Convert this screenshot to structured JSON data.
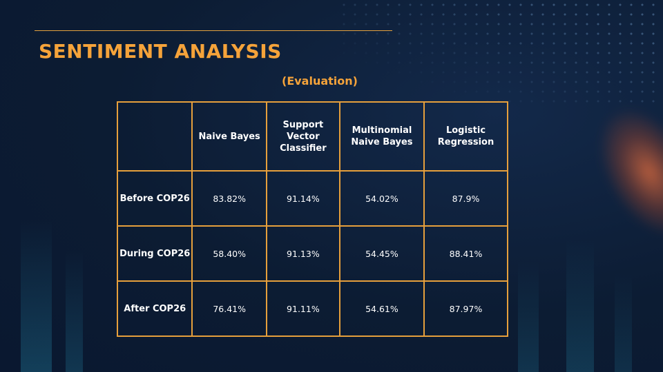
{
  "slide": {
    "title": "SENTIMENT ANALYSIS",
    "subtitle": "(Evaluation)"
  },
  "table": {
    "corner": "",
    "columns": [
      "Naive Bayes",
      "Support Vector Classifier",
      "Multinomial Naive Bayes",
      "Logistic Regression"
    ],
    "rows": [
      {
        "label": "Before COP26",
        "values": [
          "83.82%",
          "91.14%",
          "54.02%",
          "87.9%"
        ]
      },
      {
        "label": "During COP26",
        "values": [
          "58.40%",
          "91.13%",
          "54.45%",
          "88.41%"
        ]
      },
      {
        "label": "After COP26",
        "values": [
          "76.41%",
          "91.11%",
          "54.61%",
          "87.97%"
        ]
      }
    ]
  },
  "colors": {
    "background": "#0c1c33",
    "accent": "#f5a33a",
    "border": "#e7a03c",
    "text": "#ffffff"
  }
}
